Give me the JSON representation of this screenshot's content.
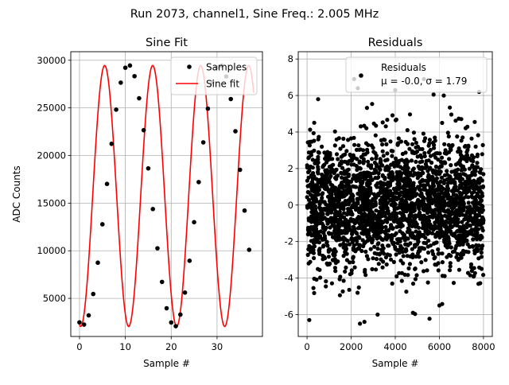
{
  "figure": {
    "suptitle": "Run 2073, channel1, Sine Freq.: 2.005 MHz"
  },
  "chart_data": [
    {
      "type": "line",
      "title": "Sine Fit",
      "xlabel": "Sample #",
      "ylabel": "ADC Counts",
      "xlim": [
        -1.9,
        39.9
      ],
      "ylim": [
        1000,
        30900
      ],
      "xticks": [
        0,
        10,
        20,
        30
      ],
      "yticks": [
        5000,
        10000,
        15000,
        20000,
        25000,
        30000
      ],
      "grid": true,
      "legend": {
        "location": "top-right",
        "entries": [
          "Samples",
          "Sine fit"
        ]
      },
      "series": [
        {
          "name": "Samples",
          "kind": "scatter",
          "color": "#000000",
          "x": [
            0,
            1,
            2,
            3,
            4,
            5,
            6,
            7,
            8,
            9,
            10,
            11,
            12,
            13,
            14,
            15,
            16,
            17,
            18,
            19,
            20,
            21,
            22,
            23,
            24,
            25,
            26,
            27,
            28,
            29,
            30,
            31,
            32,
            33,
            34,
            35,
            36,
            37
          ],
          "y": [
            2480,
            2250,
            3220,
            5460,
            8750,
            12780,
            17020,
            21230,
            24820,
            27650,
            29220,
            29450,
            28330,
            26010,
            22660,
            18650,
            14380,
            10260,
            6730,
            3960,
            2470,
            2080,
            3300,
            5610,
            8950,
            13000,
            17210,
            21380,
            24920,
            27690,
            29240,
            29440,
            28300,
            25930,
            22550,
            18500,
            14220,
            10100
          ]
        },
        {
          "name": "Sine fit",
          "kind": "line",
          "color": "#ff0000",
          "function": {
            "offset": 15750,
            "amplitude": 13700,
            "frequency_per_sample": 0.0955,
            "phase": -1.7236,
            "x_range": [
              0,
              38
            ]
          }
        }
      ]
    },
    {
      "type": "scatter",
      "title": "Residuals",
      "xlabel": "Sample #",
      "ylabel": "",
      "xlim": [
        -400,
        8400
      ],
      "ylim": [
        -7.2,
        8.4
      ],
      "xticks": [
        0,
        2000,
        4000,
        6000,
        8000
      ],
      "yticks": [
        -6,
        -4,
        -2,
        0,
        2,
        4,
        6,
        8
      ],
      "grid": true,
      "legend": {
        "location": "top-right",
        "entries": [
          "Residuals",
          "μ = -0.0, σ = 1.79"
        ]
      },
      "series": [
        {
          "name": "Residuals",
          "color": "#000000",
          "n_points": 8000,
          "mean": -0.0,
          "std": 1.79,
          "x_range": [
            0,
            8000
          ],
          "highlighted_points": [
            {
              "x": 100,
              "y": -6.3
            },
            {
              "x": 2600,
              "y": -6.4
            },
            {
              "x": 2400,
              "y": -6.5
            },
            {
              "x": 3200,
              "y": -6.0
            },
            {
              "x": 4800,
              "y": -5.9
            },
            {
              "x": 6000,
              "y": -5.5
            },
            {
              "x": 500,
              "y": 5.8
            },
            {
              "x": 2300,
              "y": 6.4
            },
            {
              "x": 6200,
              "y": 6.0
            },
            {
              "x": 7800,
              "y": 6.2
            },
            {
              "x": 5300,
              "y": 6.9
            },
            {
              "x": 4000,
              "y": 6.3
            }
          ]
        }
      ]
    }
  ]
}
